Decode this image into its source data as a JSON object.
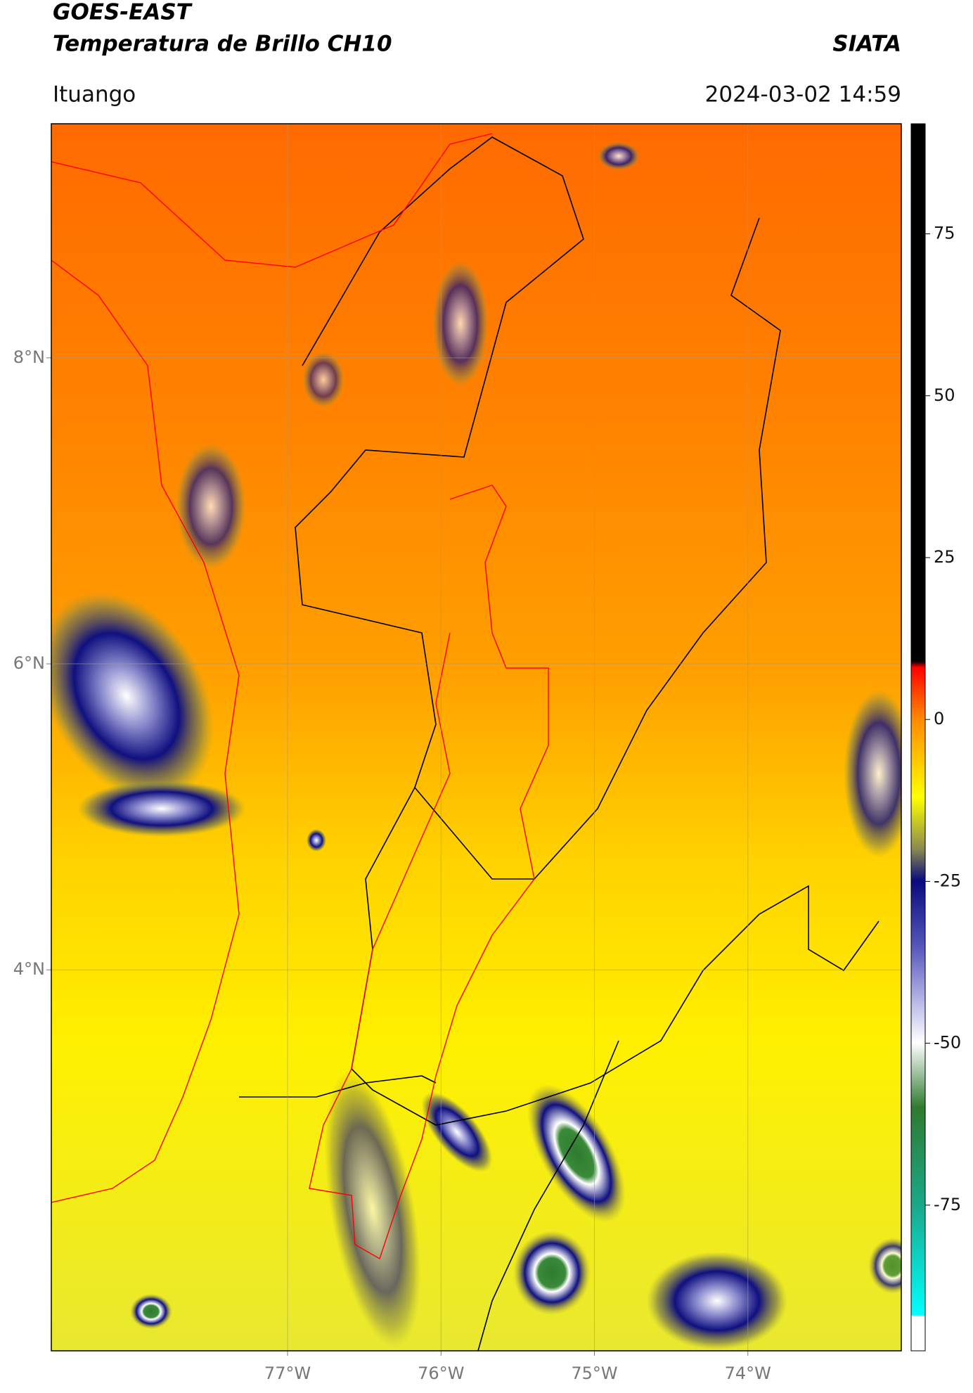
{
  "header": {
    "title": "GOES-EAST",
    "subtitle": "Temperatura de Brillo CH10",
    "source": "SIATA",
    "location": "Ituango",
    "datetime": "2024-03-02 14:59"
  },
  "map": {
    "xlim": [
      -78.54,
      -73.0
    ],
    "ylim": [
      1.51,
      9.53
    ],
    "xticks": [
      {
        "value": -77,
        "label": "77°W"
      },
      {
        "value": -76,
        "label": "76°W"
      },
      {
        "value": -75,
        "label": "75°W"
      },
      {
        "value": -74,
        "label": "74°W"
      }
    ],
    "yticks": [
      {
        "value": 8,
        "label": "8°N"
      },
      {
        "value": 6,
        "label": "6°N"
      },
      {
        "value": 4,
        "label": "4°N"
      }
    ],
    "grid": true
  },
  "colorbar": {
    "lim": [
      -97.5,
      92
    ],
    "ticks": [
      75,
      50,
      25,
      0,
      -25,
      -50,
      -75
    ]
  }
}
